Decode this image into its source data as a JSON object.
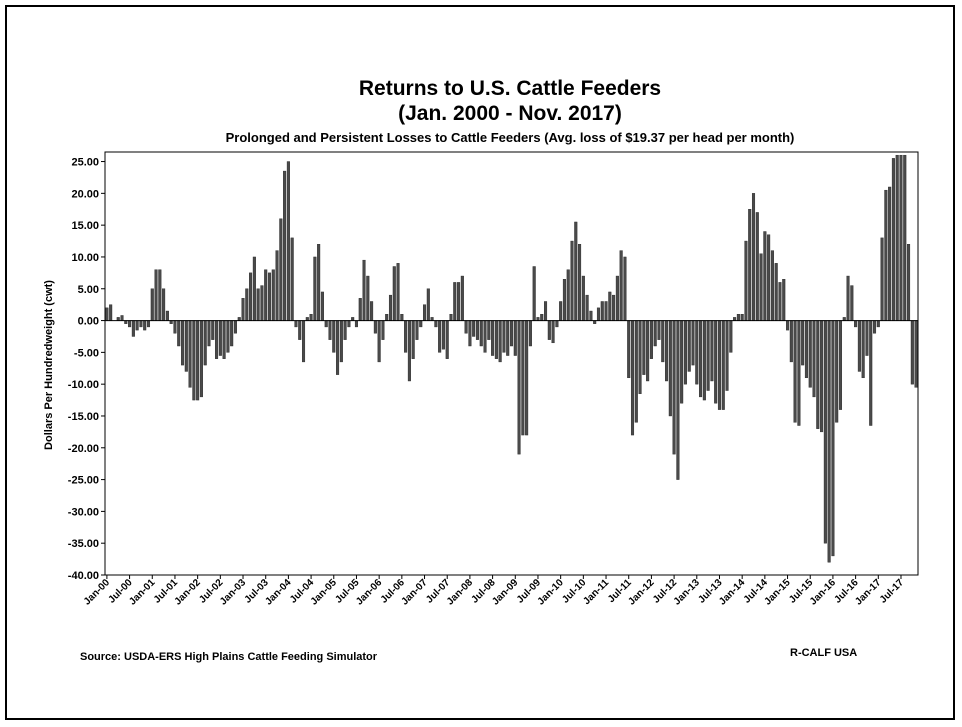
{
  "chart_data": {
    "type": "bar",
    "title": [
      "Returns to U.S. Cattle Feeders",
      "(Jan. 2000 - Nov. 2017)"
    ],
    "subtitle": "Prolonged and Persistent Losses to Cattle Feeders (Avg. loss of $19.37 per head per month)",
    "y_label": "Dollars Per Hundredweight (cwt)",
    "source": "Source:  USDA-ERS High Plains Cattle Feeding Simulator",
    "credit": "R-CALF USA",
    "color": "#4a4a4a",
    "ylim": [
      -40,
      26.5
    ],
    "yticks": [
      {
        "value": 25,
        "label": "25.00"
      },
      {
        "value": 20,
        "label": "20.00"
      },
      {
        "value": 15,
        "label": "15.00"
      },
      {
        "value": 10,
        "label": "10.00"
      },
      {
        "value": 5,
        "label": "5.00"
      },
      {
        "value": 0,
        "label": "0.00"
      },
      {
        "value": -5,
        "label": "-5.00"
      },
      {
        "value": -10,
        "label": "-10.00"
      },
      {
        "value": -15,
        "label": "-15.00"
      },
      {
        "value": -20,
        "label": "-20.00"
      },
      {
        "value": -25,
        "label": "-25.00"
      },
      {
        "value": -30,
        "label": "-30.00"
      },
      {
        "value": -35,
        "label": "-35.00"
      },
      {
        "value": -40,
        "label": "-40.00"
      }
    ],
    "categories": [
      "Jan-00",
      null,
      null,
      null,
      null,
      null,
      "Jul-00",
      null,
      null,
      null,
      null,
      null,
      "Jan-01",
      null,
      null,
      null,
      null,
      null,
      "Jul-01",
      null,
      null,
      null,
      null,
      null,
      "Jan-02",
      null,
      null,
      null,
      null,
      null,
      "Jul-02",
      null,
      null,
      null,
      null,
      null,
      "Jan-03",
      null,
      null,
      null,
      null,
      null,
      "Jul-03",
      null,
      null,
      null,
      null,
      null,
      "Jan-04",
      null,
      null,
      null,
      null,
      null,
      "Jul-04",
      null,
      null,
      null,
      null,
      null,
      "Jan-05",
      null,
      null,
      null,
      null,
      null,
      "Jul-05",
      null,
      null,
      null,
      null,
      null,
      "Jan-06",
      null,
      null,
      null,
      null,
      null,
      "Jul-06",
      null,
      null,
      null,
      null,
      null,
      "Jan-07",
      null,
      null,
      null,
      null,
      null,
      "Jul-07",
      null,
      null,
      null,
      null,
      null,
      "Jan-08",
      null,
      null,
      null,
      null,
      null,
      "Jul-08",
      null,
      null,
      null,
      null,
      null,
      "Jan-09",
      null,
      null,
      null,
      null,
      null,
      "Jul-09",
      null,
      null,
      null,
      null,
      null,
      "Jan-10",
      null,
      null,
      null,
      null,
      null,
      "Jul-10",
      null,
      null,
      null,
      null,
      null,
      "Jan-11",
      null,
      null,
      null,
      null,
      null,
      "Jul-11",
      null,
      null,
      null,
      null,
      null,
      "Jan-12",
      null,
      null,
      null,
      null,
      null,
      "Jul-12",
      null,
      null,
      null,
      null,
      null,
      "Jan-13",
      null,
      null,
      null,
      null,
      null,
      "Jul-13",
      null,
      null,
      null,
      null,
      null,
      "Jan-14",
      null,
      null,
      null,
      null,
      null,
      "Jul-14",
      null,
      null,
      null,
      null,
      null,
      "Jan-15",
      null,
      null,
      null,
      null,
      null,
      "Jul-15",
      null,
      null,
      null,
      null,
      null,
      "Jan-16",
      null,
      null,
      null,
      null,
      null,
      "Jul-16",
      null,
      null,
      null,
      null,
      null,
      "Jan-17",
      null,
      null,
      null,
      null,
      null,
      "Jul-17",
      null,
      null,
      null,
      null
    ],
    "values": [
      2,
      2.5,
      0,
      0.5,
      0.8,
      -0.5,
      -1,
      -2.5,
      -1.5,
      -1,
      -1.5,
      -1,
      5,
      8,
      8,
      5,
      1.5,
      -0.5,
      -2,
      -4,
      -7,
      -8,
      -10.5,
      -12.5,
      -12.5,
      -12,
      -7,
      -4,
      -3,
      -6,
      -5.5,
      -6,
      -5,
      -4,
      -2,
      0.5,
      3.5,
      5,
      7.5,
      10,
      5,
      5.5,
      8,
      7.5,
      8,
      11,
      16,
      23.5,
      25,
      13,
      -1,
      -3,
      -6.5,
      0.5,
      1,
      10,
      12,
      4.5,
      -1,
      -3,
      -5,
      -8.5,
      -6.5,
      -3,
      -1,
      0.5,
      -1,
      3.5,
      9.5,
      7,
      3,
      -2,
      -6.5,
      -3,
      1,
      4,
      8.5,
      9,
      1,
      -5,
      -9.5,
      -6,
      -3,
      -1,
      2.5,
      5,
      0.5,
      -1,
      -5,
      -4.5,
      -6,
      1,
      6,
      6,
      7,
      -2,
      -4,
      -2.5,
      -3,
      -4,
      -5,
      -3,
      -5.5,
      -6,
      -6.5,
      -5,
      -5.5,
      -4,
      -5.5,
      -21,
      -18,
      -18,
      -4,
      8.5,
      0.5,
      1,
      3,
      -3,
      -3.5,
      -1,
      3,
      6.5,
      8,
      12.5,
      15.5,
      12,
      7,
      4,
      1.5,
      -0.5,
      2,
      3,
      3,
      4.5,
      4,
      7,
      11,
      10,
      -9,
      -18,
      -16,
      -11.5,
      -8.5,
      -9.5,
      -6,
      -4,
      -3,
      -6.5,
      -9.5,
      -15,
      -21,
      -25,
      -13,
      -10,
      -8,
      -7,
      -10,
      -12,
      -12.5,
      -11,
      -9.5,
      -13,
      -14,
      -14,
      -11,
      -5,
      0.5,
      1,
      1,
      12.5,
      17.5,
      20,
      17,
      10.5,
      14,
      13.5,
      11,
      9,
      6,
      6.5,
      -1.5,
      -6.5,
      -16,
      -16.5,
      -7,
      -9,
      -10.5,
      -12,
      -17,
      -17.5,
      -35,
      -38,
      -37,
      -16,
      -14,
      0.5,
      7,
      5.5,
      -1,
      -8,
      -9,
      -5.5,
      -16.5,
      -2,
      -1,
      13,
      20.5,
      21,
      25.5,
      26,
      26,
      26,
      12,
      -10,
      -10.5
    ]
  }
}
